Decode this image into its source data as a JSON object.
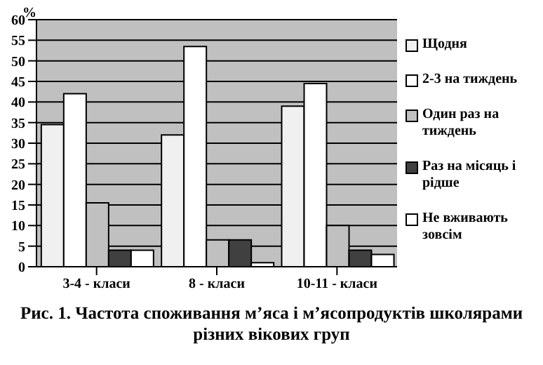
{
  "chart_data": {
    "type": "bar",
    "title": "Рис. 1. Частота споживання м’яса і м’ясопродуктів школярами різних вікових груп",
    "ylabel": "%",
    "categories": [
      "3-4 - класи",
      "8 - класи",
      "10-11 - класи"
    ],
    "series": [
      {
        "name": "Щодня",
        "color": "#f0f0f0",
        "values": [
          34.5,
          32,
          39
        ]
      },
      {
        "name": "2-3 на тиждень",
        "color": "#ffffff",
        "values": [
          42,
          53.5,
          44.5
        ]
      },
      {
        "name": "Один раз на тиждень",
        "color": "#c0c0c0",
        "values": [
          15.5,
          6.5,
          10
        ]
      },
      {
        "name": "Раз на місяць і рідше",
        "color": "#404040",
        "values": [
          4,
          6.5,
          4
        ]
      },
      {
        "name": "Не вживають зовсім",
        "color": "#ffffff",
        "values": [
          4,
          1,
          3
        ]
      }
    ],
    "ylim": [
      0,
      60
    ],
    "yticks": [
      0,
      5,
      10,
      15,
      20,
      25,
      30,
      35,
      40,
      45,
      50,
      55,
      60
    ],
    "grid": "y",
    "legend": "right"
  }
}
